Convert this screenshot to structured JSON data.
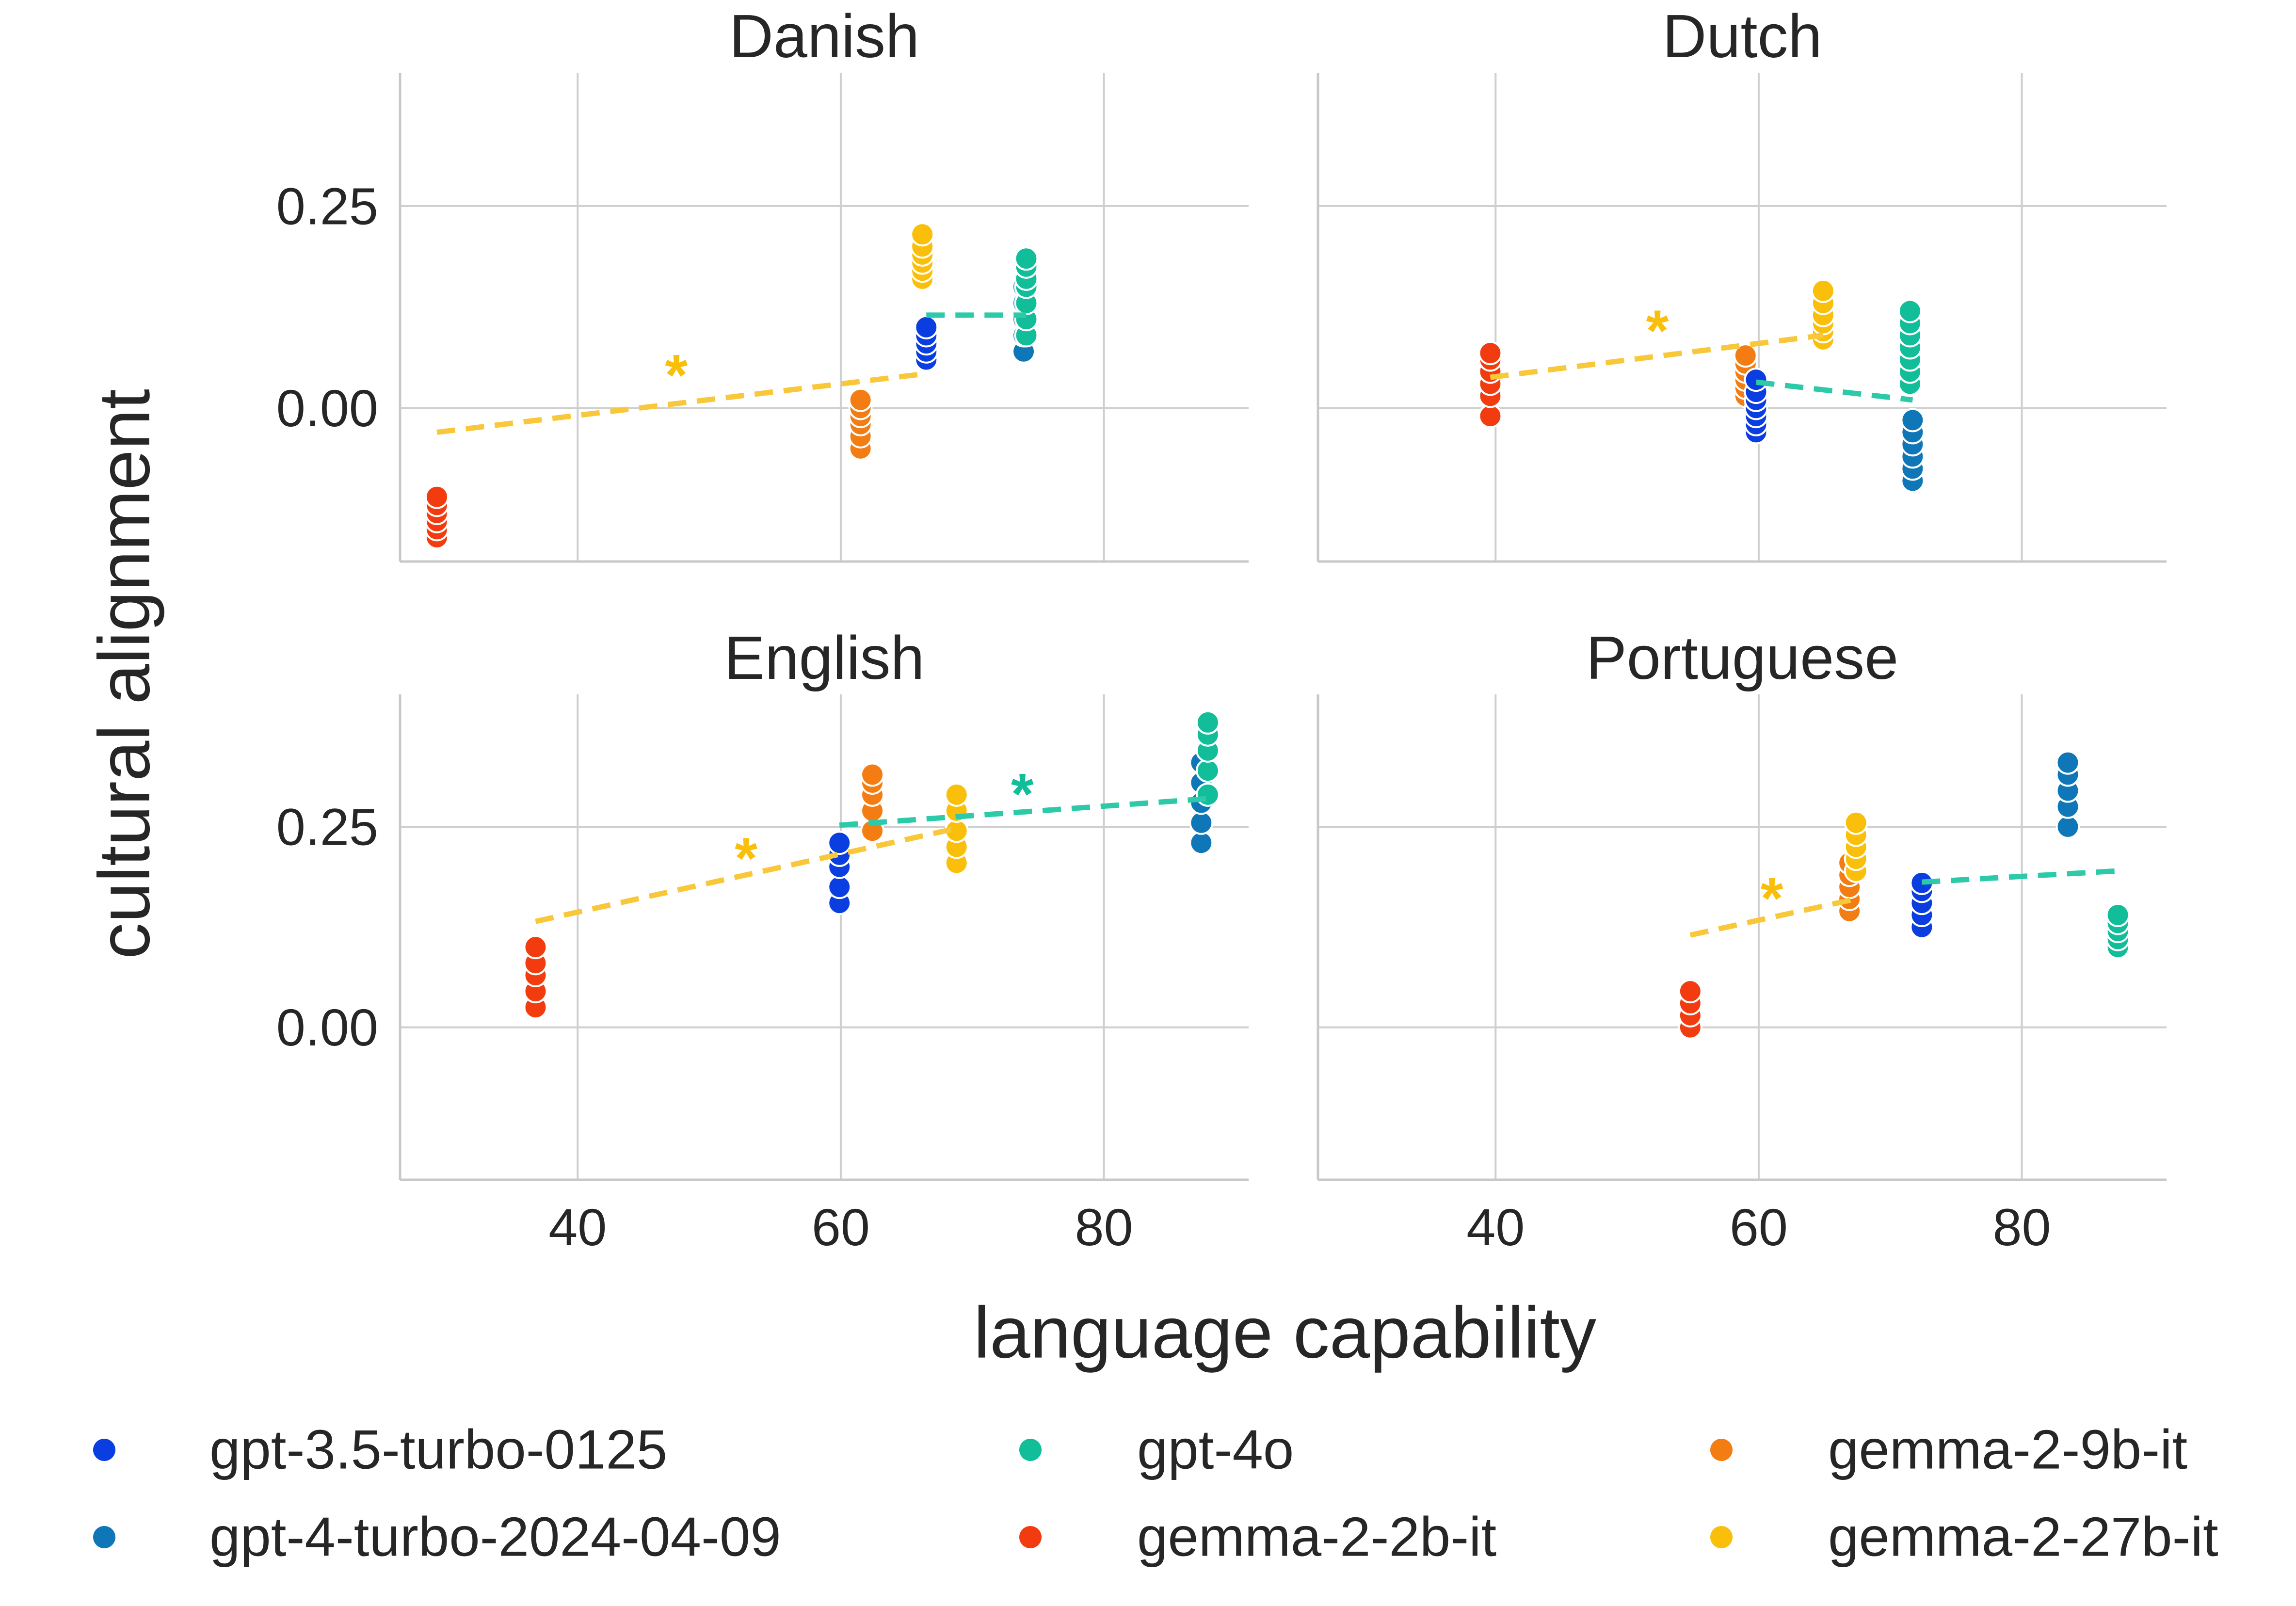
{
  "colors": {
    "gpt-3.5-turbo-0125": "#0a3ee0",
    "gpt-4-turbo-2024-04-09": "#0f77b8",
    "gpt-4o": "#12be9a",
    "gemma-2-2b-it": "#f23c0f",
    "gemma-2-9b-it": "#f37d12",
    "gemma-2-27b-it": "#f9bf0a",
    "gemma_trend": "#f9c83a",
    "gpt_trend": "#2ccaa8"
  },
  "chart_data": {
    "type": "scatter",
    "xlabel": "language capability",
    "ylabel": "cultural alignment",
    "xlim": [
      26.5,
      91
    ],
    "ylim": [
      -0.19,
      0.415
    ],
    "xticks": [
      40,
      60,
      80
    ],
    "xtick_labels": [
      "40",
      "60",
      "80"
    ],
    "yticks": [
      0.0,
      0.25
    ],
    "ytick_labels": [
      "0.00",
      "0.25"
    ],
    "grid": true,
    "legend": {
      "position": "bottom",
      "entries": [
        "gpt-3.5-turbo-0125",
        "gpt-4-turbo-2024-04-09",
        "gpt-4o",
        "gemma-2-2b-it",
        "gemma-2-9b-it",
        "gemma-2-27b-it"
      ]
    },
    "panels": [
      {
        "title": "Danish",
        "series": [
          {
            "name": "gemma-2-2b-it",
            "x": 29.3,
            "y": [
              -0.16,
              -0.15,
              -0.14,
              -0.13,
              -0.12,
              -0.11
            ]
          },
          {
            "name": "gemma-2-9b-it",
            "x": 61.5,
            "y": [
              -0.05,
              -0.035,
              -0.02,
              -0.01,
              0.0,
              0.01
            ]
          },
          {
            "name": "gemma-2-27b-it",
            "x": 66.2,
            "y": [
              0.16,
              0.17,
              0.18,
              0.19,
              0.2,
              0.215
            ]
          },
          {
            "name": "gpt-3.5-turbo-0125",
            "x": 66.5,
            "y": [
              0.06,
              0.07,
              0.08,
              0.09,
              0.1
            ]
          },
          {
            "name": "gpt-4-turbo-2024-04-09",
            "x": 73.9,
            "y": [
              0.07,
              0.09,
              0.11,
              0.13,
              0.15
            ]
          },
          {
            "name": "gpt-4o",
            "x": 74.1,
            "y": [
              0.09,
              0.11,
              0.13,
              0.15,
              0.16,
              0.175,
              0.185
            ]
          }
        ],
        "trends": [
          {
            "group": "gemma",
            "x": [
              29.3,
              66.2
            ],
            "y": [
              -0.03,
              0.042
            ]
          },
          {
            "group": "gpt",
            "x": [
              66.5,
              74.1
            ],
            "y": [
              0.115,
              0.115
            ]
          }
        ],
        "annotations": [
          {
            "text": "*",
            "group": "gemma",
            "x": 47.5,
            "y": 0.045
          }
        ]
      },
      {
        "title": "Dutch",
        "series": [
          {
            "name": "gemma-2-2b-it",
            "x": 39.6,
            "y": [
              -0.01,
              0.015,
              0.03,
              0.045,
              0.06,
              0.068
            ]
          },
          {
            "name": "gemma-2-9b-it",
            "x": 59.0,
            "y": [
              0.015,
              0.025,
              0.035,
              0.045,
              0.055,
              0.065
            ]
          },
          {
            "name": "gpt-3.5-turbo-0125",
            "x": 59.8,
            "y": [
              -0.03,
              -0.02,
              -0.01,
              0.0,
              0.01,
              0.02,
              0.035
            ]
          },
          {
            "name": "gemma-2-27b-it",
            "x": 64.9,
            "y": [
              0.085,
              0.095,
              0.105,
              0.115,
              0.13,
              0.145
            ]
          },
          {
            "name": "gpt-4o",
            "x": 71.5,
            "y": [
              0.03,
              0.045,
              0.06,
              0.075,
              0.09,
              0.105,
              0.12
            ]
          },
          {
            "name": "gpt-4-turbo-2024-04-09",
            "x": 71.7,
            "y": [
              -0.09,
              -0.075,
              -0.06,
              -0.045,
              -0.03,
              -0.015
            ]
          }
        ],
        "trends": [
          {
            "group": "gemma",
            "x": [
              39.6,
              64.9
            ],
            "y": [
              0.038,
              0.09
            ]
          },
          {
            "group": "gpt",
            "x": [
              59.8,
              71.7
            ],
            "y": [
              0.032,
              0.01
            ]
          }
        ],
        "annotations": [
          {
            "text": "*",
            "group": "gemma",
            "x": 52.3,
            "y": 0.1
          }
        ]
      },
      {
        "title": "English",
        "series": [
          {
            "name": "gemma-2-2b-it",
            "x": 36.8,
            "y": [
              0.025,
              0.045,
              0.065,
              0.08,
              0.1
            ]
          },
          {
            "name": "gpt-3.5-turbo-0125",
            "x": 59.9,
            "y": [
              0.155,
              0.175,
              0.2,
              0.215,
              0.23
            ]
          },
          {
            "name": "gemma-2-9b-it",
            "x": 62.4,
            "y": [
              0.245,
              0.27,
              0.29,
              0.305,
              0.315
            ]
          },
          {
            "name": "gemma-2-27b-it",
            "x": 68.8,
            "y": [
              0.205,
              0.225,
              0.245,
              0.27,
              0.29
            ]
          },
          {
            "name": "gpt-4-turbo-2024-04-09",
            "x": 87.4,
            "y": [
              0.23,
              0.255,
              0.28,
              0.305,
              0.33
            ]
          },
          {
            "name": "gpt-4o",
            "x": 87.9,
            "y": [
              0.29,
              0.32,
              0.345,
              0.365,
              0.38
            ]
          }
        ],
        "trends": [
          {
            "group": "gemma",
            "x": [
              36.8,
              68.8
            ],
            "y": [
              0.132,
              0.248
            ]
          },
          {
            "group": "gpt",
            "x": [
              59.9,
              87.9
            ],
            "y": [
              0.252,
              0.285
            ]
          }
        ],
        "annotations": [
          {
            "text": "*",
            "group": "gemma",
            "x": 52.8,
            "y": 0.215
          },
          {
            "text": "*",
            "group": "gpt",
            "x": 73.8,
            "y": 0.295
          }
        ]
      },
      {
        "title": "Portuguese",
        "series": [
          {
            "name": "gemma-2-2b-it",
            "x": 54.8,
            "y": [
              0.0,
              0.015,
              0.03,
              0.045
            ]
          },
          {
            "name": "gemma-2-9b-it",
            "x": 66.9,
            "y": [
              0.145,
              0.16,
              0.175,
              0.19,
              0.205
            ]
          },
          {
            "name": "gemma-2-27b-it",
            "x": 67.4,
            "y": [
              0.195,
              0.21,
              0.225,
              0.24,
              0.255
            ]
          },
          {
            "name": "gpt-3.5-turbo-0125",
            "x": 72.4,
            "y": [
              0.125,
              0.14,
              0.155,
              0.17,
              0.18
            ]
          },
          {
            "name": "gpt-4-turbo-2024-04-09",
            "x": 83.5,
            "y": [
              0.25,
              0.275,
              0.295,
              0.315,
              0.33
            ]
          },
          {
            "name": "gpt-4o",
            "x": 87.3,
            "y": [
              0.1,
              0.11,
              0.12,
              0.13,
              0.14
            ]
          }
        ],
        "trends": [
          {
            "group": "gemma",
            "x": [
              54.8,
              67.4
            ],
            "y": [
              0.115,
              0.16
            ]
          },
          {
            "group": "gpt",
            "x": [
              72.4,
              87.3
            ],
            "y": [
              0.181,
              0.195
            ]
          }
        ],
        "annotations": [
          {
            "text": "*",
            "group": "gemma",
            "x": 61.0,
            "y": 0.165
          }
        ]
      }
    ]
  }
}
